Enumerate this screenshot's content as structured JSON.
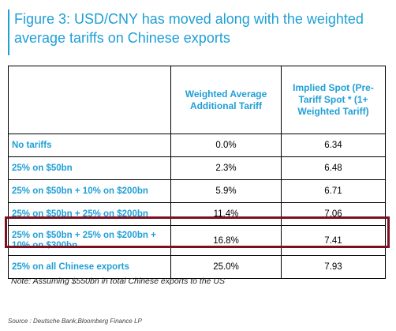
{
  "figure": {
    "title": "Figure 3: USD/CNY has moved along with the weighted average tariffs on Chinese exports"
  },
  "table": {
    "headers": [
      "",
      "Weighted Average Additional Tariff",
      "Implied Spot (Pre-Tariff Spot * (1+ Weighted Tariff)"
    ],
    "rows": [
      {
        "scenario": "No tariffs",
        "tariff": "0.0%",
        "spot": "6.34"
      },
      {
        "scenario": "25% on $50bn",
        "tariff": "2.3%",
        "spot": "6.48"
      },
      {
        "scenario": "25% on $50bn + 10% on $200bn",
        "tariff": "5.9%",
        "spot": "6.71"
      },
      {
        "scenario": "25% on $50bn + 25% on $200bn",
        "tariff": "11.4%",
        "spot": "7.06"
      },
      {
        "scenario": "25% on $50bn + 25% on $200bn + 10% on $300bn",
        "tariff": "16.8%",
        "spot": "7.41"
      },
      {
        "scenario": "25% on all Chinese exports",
        "tariff": "25.0%",
        "spot": "7.93"
      }
    ]
  },
  "note": "Note: Assuming $550bn in total Chinese exports to the US",
  "source": "Source : Deutsche Bank,Bloomberg Finance LP",
  "colors": {
    "accent": "#1f9fd6",
    "highlight": "#7a1020"
  }
}
